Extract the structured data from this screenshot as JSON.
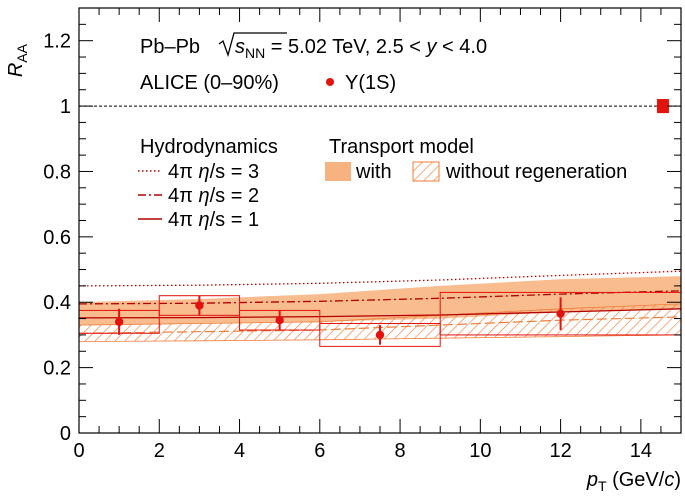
{
  "chart_data": {
    "type": "scatter",
    "collision": "Pb–Pb",
    "sqrts_symbol": "s",
    "sqrts_sub": "NN",
    "energy_text": " = 5.02 TeV, 2.5 < ",
    "rapidity_symbol": "y",
    "rapidity_range": " < 4.0",
    "experiment": "ALICE (0–90%)",
    "xlabel": "p",
    "xlabel_sub": "T",
    "xlabel_unit_open": " (GeV/",
    "xlabel_unit_c": "c",
    "xlabel_unit_close": ")",
    "ylabel": "R",
    "ylabel_sub": "AA",
    "xlim": [
      0,
      15
    ],
    "ylim": [
      0,
      1.3
    ],
    "xticks": [
      0,
      2,
      4,
      6,
      8,
      10,
      12,
      14
    ],
    "yticks": [
      0,
      0.2,
      0.4,
      0.6,
      0.8,
      1,
      1.2
    ],
    "ytick_labels": [
      "0",
      "0.2",
      "0.4",
      "0.6",
      "0.8",
      "1",
      "1.2"
    ],
    "reference_line": 1.0,
    "global_uncertainty": 0.02,
    "data_series": {
      "name": "Υ(1S)",
      "color": "#e4120d",
      "points": [
        {
          "x": 1,
          "y": 0.34,
          "stat": 0.04,
          "x_lo": 0,
          "x_hi": 2,
          "syst": 0.035
        },
        {
          "x": 3,
          "y": 0.39,
          "stat": 0.03,
          "x_lo": 2,
          "x_hi": 4,
          "syst": 0.03
        },
        {
          "x": 5,
          "y": 0.345,
          "stat": 0.03,
          "x_lo": 4,
          "x_hi": 6,
          "syst": 0.03
        },
        {
          "x": 7.5,
          "y": 0.3,
          "stat": 0.03,
          "x_lo": 6,
          "x_hi": 9,
          "syst": 0.035
        },
        {
          "x": 12,
          "y": 0.365,
          "stat": 0.05,
          "x_lo": 9,
          "x_hi": 15,
          "syst": 0.065
        }
      ]
    },
    "hydro_title": "Hydrodynamics",
    "hydro_color": "#b40000",
    "hydro_curves": [
      {
        "label_prefix": "4π ",
        "eta": "η",
        "label_suffix": "/s = 3",
        "dash": "dotted",
        "x": [
          0,
          3,
          6,
          9,
          12,
          15
        ],
        "y": [
          0.45,
          0.452,
          0.458,
          0.468,
          0.482,
          0.495
        ]
      },
      {
        "label_prefix": "4π ",
        "eta": "η",
        "label_suffix": "/s = 2",
        "dash": "dashdot",
        "x": [
          0,
          3,
          6,
          9,
          12,
          15
        ],
        "y": [
          0.395,
          0.397,
          0.403,
          0.412,
          0.425,
          0.435
        ]
      },
      {
        "label_prefix": "4π ",
        "eta": "η",
        "label_suffix": "/s = 1",
        "dash": "solid",
        "x": [
          0,
          3,
          6,
          9,
          12,
          15
        ],
        "y": [
          0.352,
          0.353,
          0.356,
          0.361,
          0.37,
          0.38
        ]
      }
    ],
    "transport_title": "Transport model",
    "transport_with_label": "with",
    "transport_without_label": "without regeneration",
    "transport_color": "#f5a66a",
    "transport_with": {
      "x": [
        0,
        3,
        6,
        9,
        12,
        15
      ],
      "lo": [
        0.33,
        0.335,
        0.34,
        0.35,
        0.37,
        0.38
      ],
      "hi": [
        0.4,
        0.41,
        0.425,
        0.45,
        0.47,
        0.48
      ]
    },
    "transport_without": {
      "x": [
        0,
        3,
        6,
        9,
        12,
        15
      ],
      "lo": [
        0.28,
        0.282,
        0.285,
        0.29,
        0.295,
        0.3
      ],
      "hi": [
        0.33,
        0.335,
        0.34,
        0.36,
        0.38,
        0.395
      ]
    },
    "transport_without_central": {
      "x": [
        0,
        3,
        6,
        9,
        12,
        15
      ],
      "y": [
        0.305,
        0.31,
        0.315,
        0.33,
        0.345,
        0.355
      ]
    }
  }
}
